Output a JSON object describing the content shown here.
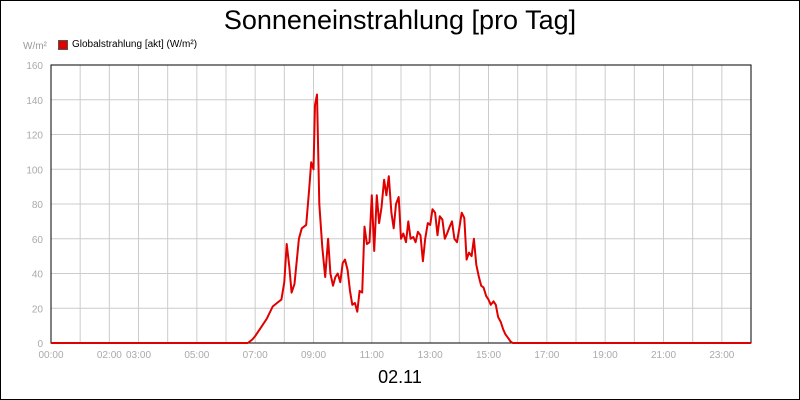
{
  "chart_data": {
    "type": "line",
    "title": "Sonneneinstrahlung [pro Tag]",
    "ylabel": "W/m²",
    "xlabel": "",
    "date_label": "02.11",
    "ylim": [
      0,
      160
    ],
    "y_ticks": [
      "0",
      "20",
      "40",
      "60",
      "80",
      "100",
      "120",
      "140",
      "160"
    ],
    "x_ticks": [
      "00:00",
      "02:00",
      "03:00",
      "05:00",
      "07:00",
      "09:00",
      "11:00",
      "13:00",
      "15:00",
      "17:00",
      "19:00",
      "21:00",
      "23:00"
    ],
    "grid": true,
    "legend": "top-left",
    "series": [
      {
        "name": "Globalstrahlung [akt] (W/m²)",
        "color": "#e00000",
        "x_hours": [
          0,
          6.75,
          6.9,
          7.0,
          7.2,
          7.4,
          7.6,
          7.75,
          7.9,
          8.0,
          8.08,
          8.17,
          8.25,
          8.35,
          8.5,
          8.6,
          8.75,
          8.85,
          8.92,
          9.0,
          9.05,
          9.12,
          9.2,
          9.3,
          9.4,
          9.5,
          9.58,
          9.67,
          9.75,
          9.83,
          9.92,
          10.0,
          10.08,
          10.17,
          10.25,
          10.33,
          10.42,
          10.5,
          10.58,
          10.67,
          10.75,
          10.83,
          10.92,
          11.0,
          11.08,
          11.17,
          11.25,
          11.33,
          11.42,
          11.5,
          11.58,
          11.67,
          11.75,
          11.83,
          11.92,
          12.0,
          12.08,
          12.17,
          12.25,
          12.33,
          12.42,
          12.5,
          12.58,
          12.67,
          12.75,
          12.83,
          12.92,
          13.0,
          13.08,
          13.17,
          13.25,
          13.33,
          13.42,
          13.5,
          13.58,
          13.67,
          13.75,
          13.83,
          13.92,
          14.0,
          14.08,
          14.17,
          14.25,
          14.33,
          14.42,
          14.5,
          14.58,
          14.67,
          14.75,
          14.83,
          14.92,
          15.0,
          15.08,
          15.17,
          15.25,
          15.33,
          15.42,
          15.5,
          15.58,
          15.67,
          15.75,
          15.83,
          15.92,
          16.0,
          16.08,
          16.17,
          16.25,
          16.33,
          16.42,
          16.5,
          16.58,
          16.67,
          16.75,
          16.83,
          16.92,
          17.0,
          17.08,
          17.17,
          17.25,
          17.33,
          17.5,
          24
        ],
        "values": [
          0,
          0,
          2,
          4,
          9,
          14,
          21,
          23,
          25,
          35,
          57,
          44,
          29,
          34,
          60,
          66,
          68,
          88,
          104,
          100,
          137,
          143,
          80,
          55,
          38,
          60,
          40,
          33,
          38,
          40,
          35,
          46,
          48,
          42,
          30,
          22,
          23,
          18,
          30,
          29,
          67,
          57,
          58,
          85,
          53,
          85,
          69,
          78,
          94,
          85,
          96,
          75,
          66,
          80,
          84,
          60,
          63,
          58,
          70,
          60,
          61,
          58,
          64,
          62,
          47,
          60,
          69,
          68,
          77,
          75,
          62,
          73,
          71,
          60,
          63,
          67,
          70,
          60,
          58,
          66,
          75,
          72,
          48,
          52,
          50,
          60,
          45,
          38,
          33,
          32,
          27,
          25,
          22,
          24,
          22,
          15,
          12,
          8,
          5,
          3,
          1,
          0,
          0,
          0,
          0,
          0,
          0,
          0,
          0,
          0,
          0,
          0,
          0,
          0,
          0,
          0,
          0,
          0,
          0,
          0,
          0,
          0
        ]
      }
    ]
  }
}
